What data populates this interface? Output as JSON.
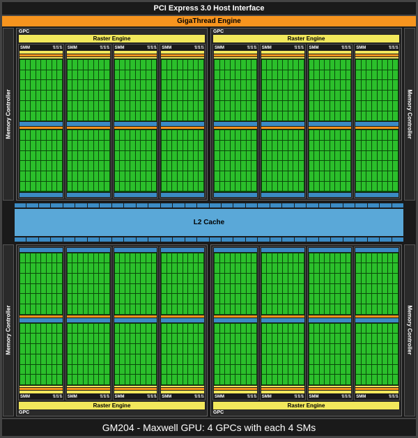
{
  "labels": {
    "pci": "PCI Express 3.0 Host Interface",
    "giga": "GigaThread Engine",
    "mc": "Memory Controller",
    "gpc": "GPC",
    "raster": "Raster Engine",
    "smm": "SMM",
    "l2": "L2 Cache",
    "caption": "GM204 - Maxwell GPU: 4 GPCs with each 4 SMs"
  },
  "colors": {
    "bg": "#1a1a1a",
    "border": "#444444",
    "orange": "#f7941e",
    "yellow": "#f2e85c",
    "blue": "#3b8bc4",
    "blue_light": "#5aa8d8",
    "green": "#2bbf2b",
    "green_dark": "#0a4a0a",
    "text": "#ffffff"
  },
  "structure": {
    "type": "block-diagram",
    "gpc_count": 4,
    "sm_per_gpc": 4,
    "core_grid_cols": 8,
    "core_grid_rows": 6,
    "core_blocks_per_sm": 2,
    "mem_controllers": 4,
    "cache_segments": 32
  },
  "typography": {
    "title_fontsize": 11,
    "label_fontsize": 8,
    "small_fontsize": 6,
    "caption_fontsize": 14,
    "font_family": "Arial"
  }
}
